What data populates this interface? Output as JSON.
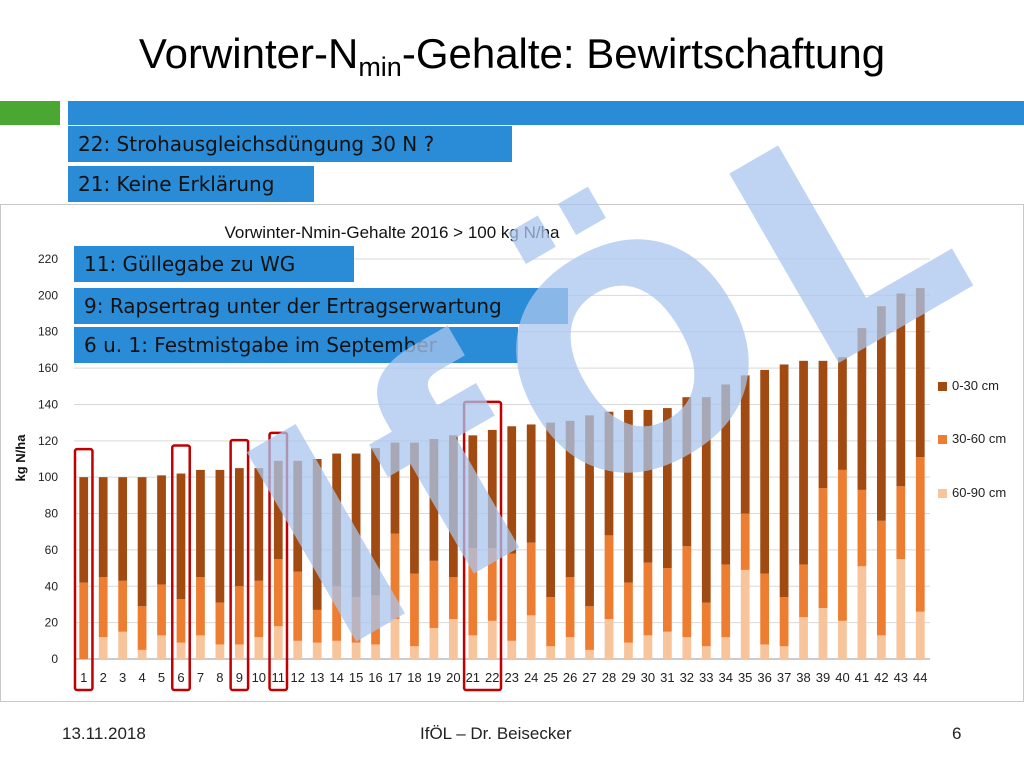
{
  "slide": {
    "title_main": "Vorwinter-N",
    "title_sub": "min",
    "title_rest": "-Gehalte: Bewirtschaftung"
  },
  "notes": [
    "22: Strohausgleichsdüngung 30 N ?",
    "21: Keine Erklärung",
    "11: Güllegabe zu WG",
    "9: Rapsertrag unter der Ertragserwartung",
    "6 u. 1: Festmistgabe im September"
  ],
  "watermark": "IfÖL",
  "footer": {
    "date": "13.11.2018",
    "center": "IfÖL – Dr. Beisecker",
    "page": "6"
  },
  "colors": {
    "s0_30": "#a14b12",
    "s30_60": "#ed7d31",
    "s60_90": "#f8c49c",
    "accent_blue": "#2a8cd6",
    "accent_green": "#4aa832",
    "highlight_red": "#c00000",
    "watermark": "#a9c6ee"
  },
  "chart_data": {
    "type": "bar",
    "stacked": true,
    "title": "Vorwinter-Nmin-Gehalte 2016 > 100 kg N/ha",
    "xlabel": "",
    "ylabel": "kg N/ha",
    "ylim": [
      0,
      220
    ],
    "yticks": [
      0,
      20,
      40,
      60,
      80,
      100,
      120,
      140,
      160,
      180,
      200,
      220
    ],
    "legend_position": "right",
    "categories": [
      "1",
      "2",
      "3",
      "4",
      "5",
      "6",
      "7",
      "8",
      "9",
      "10",
      "11",
      "12",
      "13",
      "14",
      "15",
      "16",
      "17",
      "18",
      "19",
      "20",
      "21",
      "22",
      "23",
      "24",
      "25",
      "26",
      "27",
      "28",
      "29",
      "30",
      "31",
      "32",
      "33",
      "34",
      "35",
      "36",
      "37",
      "38",
      "39",
      "40",
      "41",
      "42",
      "43",
      "44"
    ],
    "highlighted_categories": [
      "1",
      "6",
      "9",
      "11",
      "21",
      "22"
    ],
    "series": [
      {
        "name": "60-90 cm",
        "values": [
          0,
          12,
          15,
          5,
          13,
          9,
          13,
          8,
          8,
          12,
          18,
          10,
          9,
          10,
          9,
          8,
          22,
          7,
          17,
          22,
          13,
          21,
          10,
          24,
          7,
          12,
          5,
          22,
          9,
          13,
          15,
          12,
          7,
          12,
          49,
          8,
          7,
          23,
          28,
          21,
          51,
          13,
          55,
          26
        ]
      },
      {
        "name": "30-60 cm",
        "values": [
          42,
          33,
          28,
          24,
          28,
          24,
          32,
          23,
          32,
          31,
          37,
          38,
          18,
          30,
          25,
          27,
          47,
          40,
          37,
          23,
          48,
          40,
          48,
          40,
          27,
          33,
          24,
          46,
          33,
          40,
          35,
          50,
          24,
          40,
          31,
          39,
          27,
          29,
          66,
          83,
          42,
          63,
          40,
          85
        ]
      },
      {
        "name": "0-30 cm",
        "values": [
          58,
          55,
          57,
          71,
          60,
          69,
          59,
          73,
          65,
          62,
          54,
          61,
          83,
          73,
          79,
          81,
          50,
          72,
          67,
          78,
          62,
          65,
          70,
          65,
          96,
          86,
          105,
          68,
          95,
          84,
          88,
          82,
          113,
          99,
          76,
          112,
          128,
          112,
          70,
          62,
          89,
          118,
          106,
          93
        ]
      }
    ]
  }
}
